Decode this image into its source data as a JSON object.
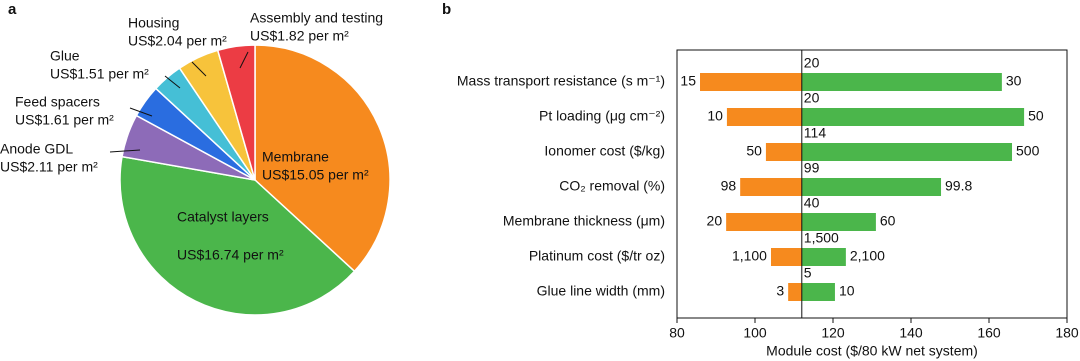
{
  "chart_data": [
    {
      "type": "pie",
      "panel": "a",
      "categories": [
        "Membrane",
        "Catalyst layers",
        "Anode GDL",
        "Feed spacers",
        "Glue",
        "Housing",
        "Assembly and testing"
      ],
      "values": [
        15.05,
        16.74,
        2.11,
        1.61,
        1.51,
        2.04,
        1.82
      ],
      "value_labels": [
        "US$15.05 per m²",
        "US$16.74 per m²",
        "US$2.11 per m²",
        "US$1.61 per m²",
        "US$1.51 per m²",
        "US$2.04 per m²",
        "US$1.82 per m²"
      ],
      "colors": [
        "#f68a1e",
        "#4bb64b",
        "#8d6bb8",
        "#2a6de0",
        "#45bfd6",
        "#f7c33b",
        "#ec3c44"
      ]
    },
    {
      "type": "tornado",
      "panel": "b",
      "categories": [
        "Mass transport resistance (s m⁻¹)",
        "Pt loading (μg cm⁻²)",
        "Ionomer cost ($/kg)",
        "CO₂ removal (%)",
        "Membrane thickness (μm)",
        "Platinum cost ($/tr oz)",
        "Glue line width (mm)"
      ],
      "baseline": 112,
      "base_labels": [
        "20",
        "20",
        "114",
        "99",
        "40",
        "1,500",
        "5"
      ],
      "series": [
        {
          "color": "#f68a1e",
          "values": [
            85.9,
            92.8,
            102.8,
            96.2,
            92.6,
            104.1,
            108.5
          ],
          "labels": [
            "15",
            "10",
            "50",
            "98",
            "20",
            "1,100",
            "3"
          ]
        },
        {
          "color": "#4bb64b",
          "values": [
            163.3,
            169,
            165.9,
            147.7,
            131,
            123.3,
            120.5
          ],
          "labels": [
            "30",
            "50",
            "500",
            "99.8",
            "60",
            "2,100",
            "10"
          ]
        }
      ],
      "xlim": [
        80,
        180
      ],
      "xticks": [
        80,
        100,
        120,
        140,
        160,
        180
      ],
      "xlabel": "Module cost ($/80 kW net system)"
    }
  ]
}
